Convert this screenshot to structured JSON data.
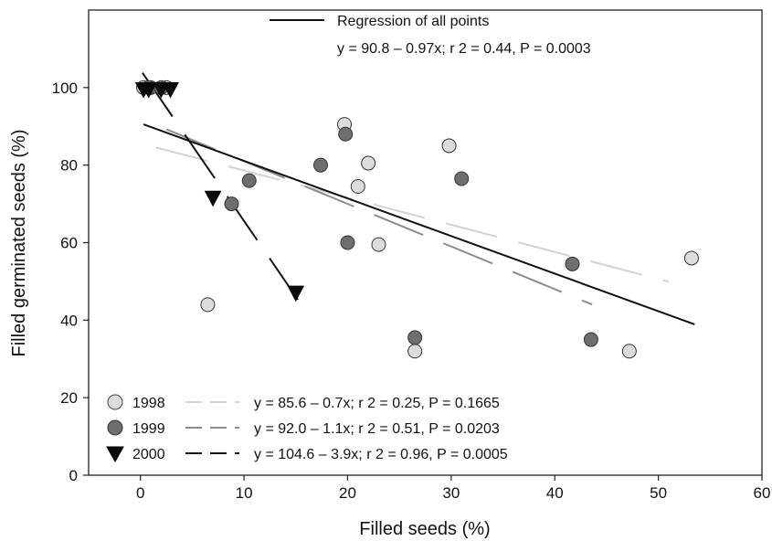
{
  "chart_data": {
    "type": "scatter",
    "xlabel": "Filled seeds (%)",
    "ylabel": "Filled germinated seeds (%)",
    "xlim": [
      -5,
      60
    ],
    "ylim": [
      0,
      120
    ],
    "x_ticks": [
      0,
      10,
      20,
      30,
      40,
      50,
      60
    ],
    "y_ticks": [
      0,
      20,
      40,
      60,
      80,
      100
    ],
    "grid": false,
    "legend_position": "bottom-left",
    "overall_regression": {
      "label": "Regression of all points",
      "equation": "y = 90.8 – 0.97x; r 2 = 0.44, P = 0.0003",
      "intercept": 90.8,
      "slope": -0.97,
      "x_range": [
        0.3,
        53.5
      ],
      "color": "#111111"
    },
    "series": [
      {
        "name": "1998",
        "marker": "circle",
        "fill": "#dcdcdc",
        "line_color": "#d2d2d2",
        "equation": "y = 85.6 – 0.7x; r 2 = 0.25, P = 0.1665",
        "intercept": 85.6,
        "slope": -0.7,
        "x_range": [
          1.5,
          51
        ],
        "points": [
          {
            "x": 0.3,
            "y": 100
          },
          {
            "x": 1.0,
            "y": 100
          },
          {
            "x": 2.5,
            "y": 100
          },
          {
            "x": 19.7,
            "y": 90.5
          },
          {
            "x": 29.8,
            "y": 85
          },
          {
            "x": 22.0,
            "y": 80.5
          },
          {
            "x": 21.0,
            "y": 74.5
          },
          {
            "x": 23.0,
            "y": 59.5
          },
          {
            "x": 6.5,
            "y": 44
          },
          {
            "x": 26.5,
            "y": 32
          },
          {
            "x": 47.2,
            "y": 32
          },
          {
            "x": 53.2,
            "y": 56
          }
        ]
      },
      {
        "name": "1999",
        "marker": "circle",
        "fill": "#6e6e6e",
        "line_color": "#8c8c8c",
        "equation": "y = 92.0 – 1.1x; r 2 = 0.51, P = 0.0203",
        "intercept": 92.0,
        "slope": -1.1,
        "x_range": [
          2.5,
          43.6
        ],
        "points": [
          {
            "x": 0.8,
            "y": 100
          },
          {
            "x": 2.0,
            "y": 100
          },
          {
            "x": 19.8,
            "y": 88
          },
          {
            "x": 17.4,
            "y": 80
          },
          {
            "x": 31.0,
            "y": 76.5
          },
          {
            "x": 10.5,
            "y": 76
          },
          {
            "x": 8.8,
            "y": 70
          },
          {
            "x": 20.0,
            "y": 60
          },
          {
            "x": 41.7,
            "y": 54.5
          },
          {
            "x": 26.5,
            "y": 35.5
          },
          {
            "x": 43.5,
            "y": 35
          }
        ]
      },
      {
        "name": "2000",
        "marker": "triangle-down",
        "fill": "#0a0a0a",
        "line_color": "#111111",
        "equation": "y = 104.6 – 3.9x; r 2 = 0.96, P = 0.0005",
        "intercept": 104.6,
        "slope": -3.9,
        "x_range": [
          0.2,
          15.2
        ],
        "points": [
          {
            "x": 0.3,
            "y": 99.5
          },
          {
            "x": 0.8,
            "y": 99.5
          },
          {
            "x": 2.0,
            "y": 99.5
          },
          {
            "x": 2.9,
            "y": 99.5
          },
          {
            "x": 7.0,
            "y": 71.5
          },
          {
            "x": 15.0,
            "y": 47
          }
        ]
      }
    ]
  }
}
